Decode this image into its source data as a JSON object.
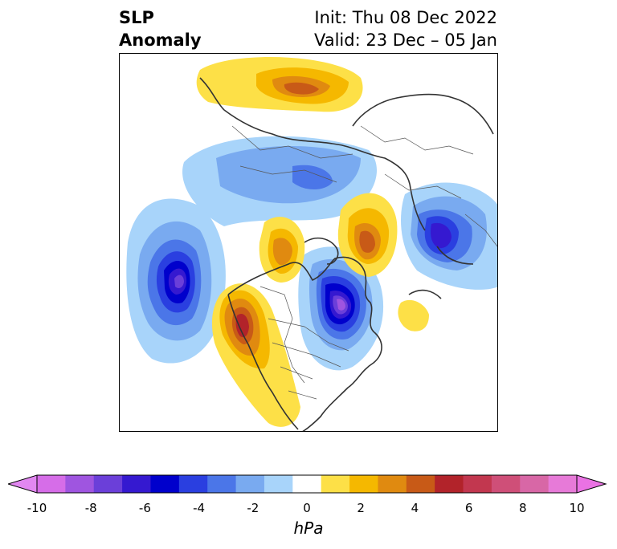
{
  "header": {
    "title_line1": "SLP",
    "title_line2": "Anomaly",
    "init": "Init: Thu 08 Dec 2022",
    "valid": "Valid: 23 Dec – 05 Jan"
  },
  "colorbar": {
    "unit": "hPa",
    "range": [
      -10,
      10
    ],
    "extend": "both",
    "tick_labels": [
      "-10",
      "-8",
      "-6",
      "-4",
      "-2",
      "0",
      "2",
      "4",
      "6",
      "8",
      "10"
    ],
    "colors": [
      "#d66de8",
      "#9f55e0",
      "#6b3fd9",
      "#3519d0",
      "#0000cc",
      "#2a3fe0",
      "#4b76e8",
      "#79aaf0",
      "#a8d4fa",
      "#ffffff",
      "#fde047",
      "#f5b800",
      "#e08a10",
      "#c85a17",
      "#b2232a",
      "#c2374f",
      "#cf4f78",
      "#d867a6",
      "#e77ad8"
    ],
    "under_color": "#e187f0",
    "over_color": "#ea72e4"
  },
  "map": {
    "projection": "polar stereographic",
    "features": [
      "coastlines",
      "country borders",
      "US state borders"
    ]
  }
}
